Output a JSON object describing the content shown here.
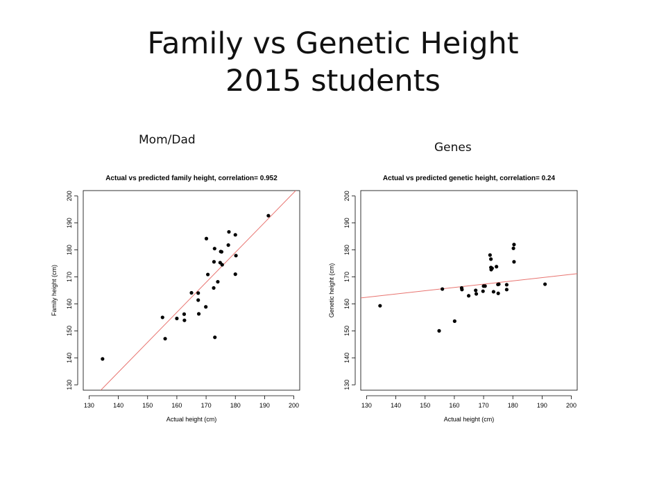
{
  "slide": {
    "title_line1": "Family vs Genetic Height",
    "title_line2": "2015 students",
    "left_label": "Mom/Dad",
    "right_label": "Genes"
  },
  "colors": {
    "points": "#000000",
    "fit_line": "#e8726e",
    "axes": "#000000"
  },
  "chart_data": [
    {
      "type": "scatter",
      "title": "Actual vs predicted family height, correlation= 0.952",
      "xlabel": "Actual height (cm)",
      "ylabel": "Family height (cm)",
      "xlim": [
        128,
        202
      ],
      "ylim": [
        128,
        202
      ],
      "xticks": [
        130,
        140,
        150,
        160,
        170,
        180,
        190,
        200
      ],
      "yticks": [
        130,
        140,
        150,
        160,
        170,
        180,
        190,
        200
      ],
      "grid": false,
      "fit_line": [
        [
          134,
          128
        ],
        [
          202,
          203.5
        ]
      ],
      "points": [
        [
          134.6,
          139.6
        ],
        [
          155.1,
          155.0
        ],
        [
          156.0,
          147.1
        ],
        [
          160.0,
          154.6
        ],
        [
          162.5,
          156.2
        ],
        [
          162.6,
          153.9
        ],
        [
          165.0,
          164.1
        ],
        [
          167.3,
          164.0
        ],
        [
          167.3,
          161.4
        ],
        [
          167.5,
          156.3
        ],
        [
          169.9,
          158.9
        ],
        [
          170.1,
          184.2
        ],
        [
          170.6,
          170.9
        ],
        [
          172.6,
          165.9
        ],
        [
          172.7,
          175.6
        ],
        [
          172.9,
          180.5
        ],
        [
          173.0,
          147.6
        ],
        [
          174.0,
          168.2
        ],
        [
          174.8,
          175.3
        ],
        [
          175.0,
          179.4
        ],
        [
          175.3,
          179.3
        ],
        [
          175.5,
          174.5
        ],
        [
          177.6,
          181.8
        ],
        [
          177.8,
          186.7
        ],
        [
          180.0,
          185.6
        ],
        [
          180.0,
          171.0
        ],
        [
          180.2,
          177.9
        ],
        [
          191.3,
          192.7
        ]
      ]
    },
    {
      "type": "scatter",
      "title": "Actual vs predicted genetic height, correlation= 0.24",
      "xlabel": "Actual height (cm)",
      "ylabel": "Genetic height (cm)",
      "xlim": [
        128,
        202
      ],
      "ylim": [
        128,
        202
      ],
      "xticks": [
        130,
        140,
        150,
        160,
        170,
        180,
        190,
        200
      ],
      "yticks": [
        130,
        140,
        150,
        160,
        170,
        180,
        190,
        200
      ],
      "grid": false,
      "fit_line": [
        [
          128,
          162.2
        ],
        [
          202,
          171.2
        ]
      ],
      "points": [
        [
          134.6,
          159.3
        ],
        [
          154.8,
          150.0
        ],
        [
          155.9,
          165.5
        ],
        [
          160.1,
          153.6
        ],
        [
          162.5,
          165.9
        ],
        [
          162.6,
          165.3
        ],
        [
          164.9,
          163.0
        ],
        [
          167.3,
          165.0
        ],
        [
          167.5,
          163.7
        ],
        [
          169.8,
          164.7
        ],
        [
          170.0,
          166.6
        ],
        [
          170.5,
          166.6
        ],
        [
          172.2,
          178.1
        ],
        [
          172.5,
          176.6
        ],
        [
          172.5,
          173.5
        ],
        [
          172.6,
          172.7
        ],
        [
          172.9,
          173.2
        ],
        [
          173.4,
          164.5
        ],
        [
          174.4,
          173.8
        ],
        [
          174.9,
          167.2
        ],
        [
          175.0,
          163.9
        ],
        [
          175.2,
          167.3
        ],
        [
          177.9,
          167.1
        ],
        [
          177.9,
          165.3
        ],
        [
          180.2,
          180.6
        ],
        [
          180.4,
          182.0
        ],
        [
          180.4,
          175.6
        ],
        [
          191.0,
          167.3
        ]
      ]
    }
  ]
}
